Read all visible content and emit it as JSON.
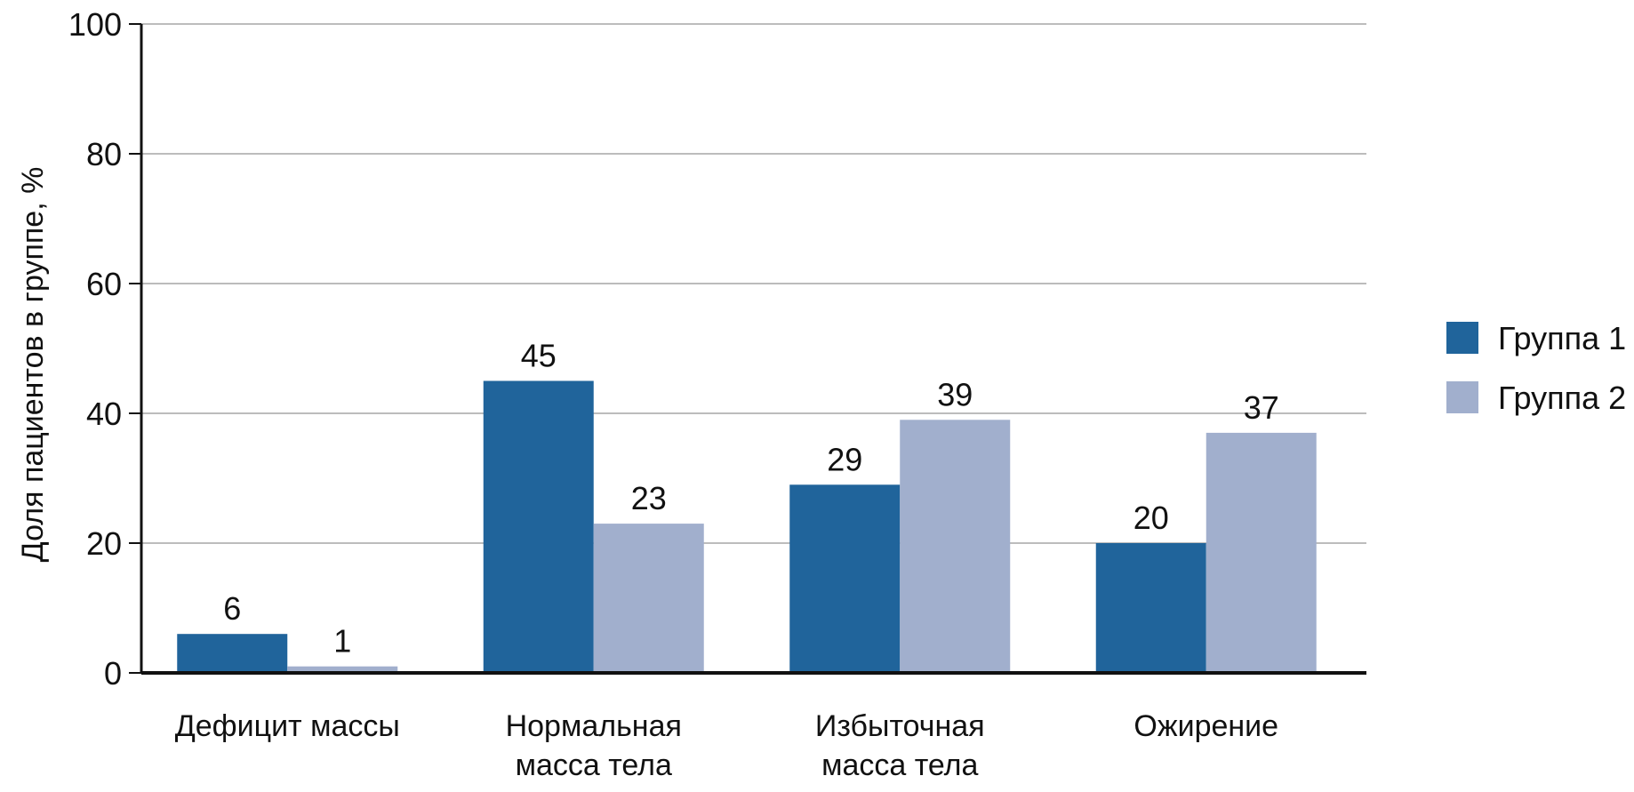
{
  "chart_data": {
    "type": "bar",
    "categories": [
      [
        "Дефицит массы"
      ],
      [
        "Нормальная",
        "масса тела"
      ],
      [
        "Избыточная",
        "масса тела"
      ],
      [
        "Ожирение"
      ]
    ],
    "series": [
      {
        "name": "Группа 1",
        "values": [
          6,
          45,
          29,
          20
        ],
        "color": "#20649b"
      },
      {
        "name": "Группа 2",
        "values": [
          1,
          23,
          39,
          37
        ],
        "color": "#a1afcd"
      }
    ],
    "title": "",
    "xlabel": "",
    "ylabel": "Доля пациентов в группе, %",
    "ylim": [
      0,
      100
    ],
    "yticks": [
      0,
      20,
      40,
      60,
      80,
      100
    ],
    "grid": true,
    "legend_position": "right"
  }
}
